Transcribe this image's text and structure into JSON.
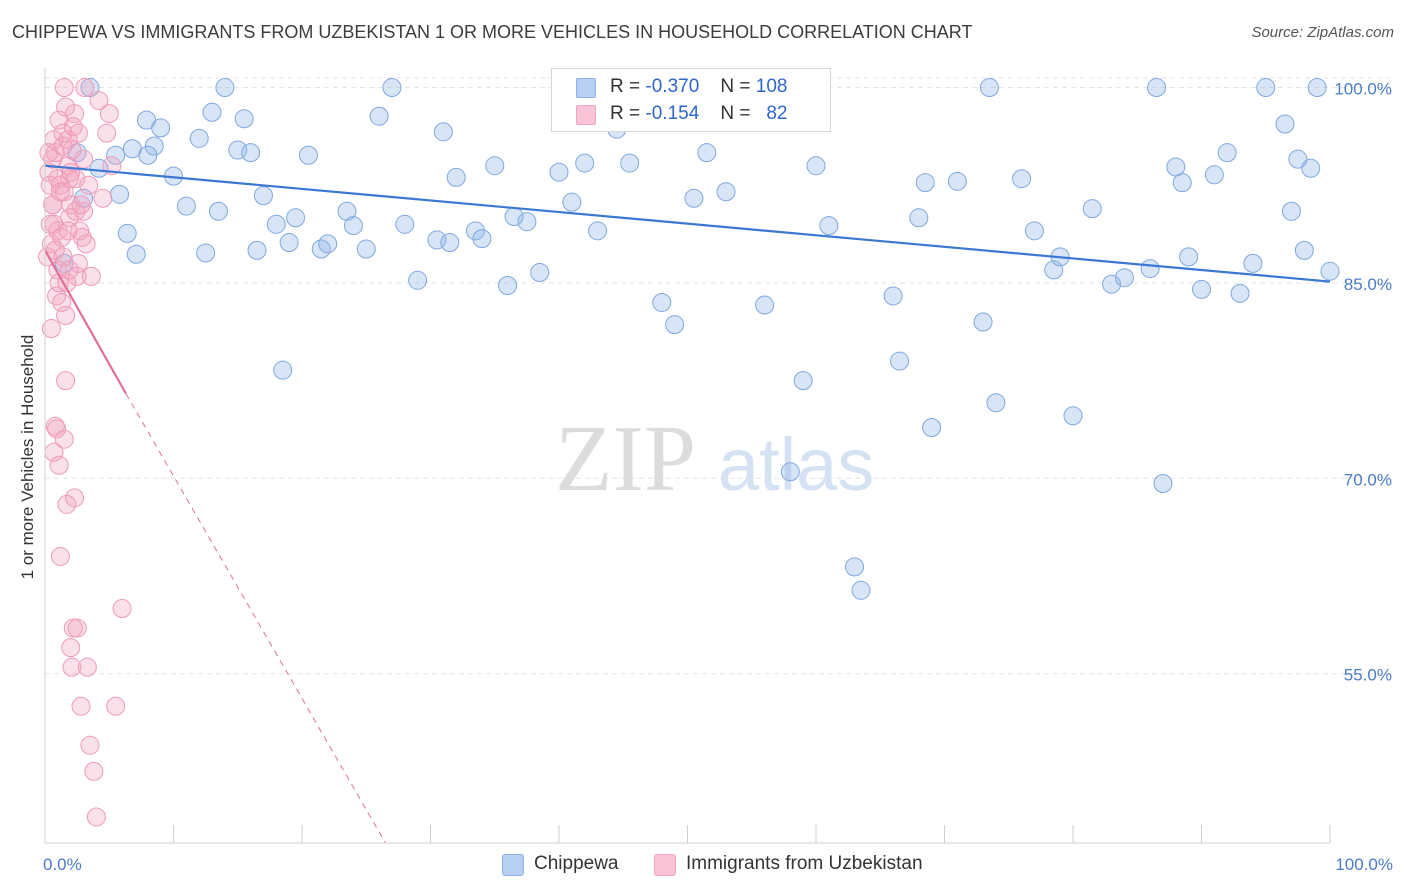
{
  "header": {
    "title": "CHIPPEWA VS IMMIGRANTS FROM UZBEKISTAN 1 OR MORE VEHICLES IN HOUSEHOLD CORRELATION CHART",
    "source": "Source: ZipAtlas.com"
  },
  "watermark": {
    "zip": "ZIP",
    "atlas": "atlas"
  },
  "legend": {
    "series1": {
      "r_label": "R =",
      "r_value": "-0.370",
      "n_label": "N =",
      "n_value": "108"
    },
    "series2": {
      "r_label": "R =",
      "r_value": "-0.154",
      "n_label": "N =",
      "n_value": "82"
    }
  },
  "chart_data": {
    "type": "scatter",
    "ylabel": "1 or more Vehicles in Household",
    "xlim": [
      0,
      100
    ],
    "ylim": [
      42,
      101.5
    ],
    "x_tick_labels": [
      "0.0%",
      "100.0%"
    ],
    "y_ticks": [
      55,
      70,
      85,
      100
    ],
    "y_tick_labels": [
      "55.0%",
      "70.0%",
      "85.0%",
      "100.0%"
    ],
    "grid": true,
    "legend_position": "top-center",
    "colors": {
      "series1": "#8fb5e8",
      "series1_line": "#3a78d4",
      "series2": "#f2a5c0",
      "series2_line": "#e07099",
      "axis_text": "#4a7cc8"
    },
    "series": [
      {
        "name": "Chippewa",
        "trend": {
          "x": [
            0,
            100
          ],
          "y": [
            94,
            85.1
          ]
        },
        "x": [
          3.0,
          4.2,
          5.5,
          5.8,
          6.4,
          6.8,
          7.1,
          7.9,
          8.5,
          9.0,
          10.0,
          11.0,
          12.0,
          12.5,
          13.0,
          13.5,
          15.0,
          15.5,
          16.0,
          16.5,
          17.0,
          18.0,
          18.5,
          19.0,
          20.5,
          21.5,
          22.0,
          23.5,
          24.0,
          25.0,
          26.0,
          27.0,
          28.0,
          29.0,
          30.5,
          31.0,
          32.0,
          33.5,
          34.0,
          35.0,
          36.0,
          37.5,
          38.5,
          40.0,
          41.0,
          42.0,
          43.0,
          45.5,
          48.0,
          49.0,
          50.5,
          51.5,
          53.0,
          55.0,
          56.0,
          57.5,
          58.0,
          59.0,
          60.0,
          61.0,
          63.5,
          66.0,
          66.5,
          68.0,
          69.0,
          71.0,
          73.0,
          74.0,
          76.0,
          77.0,
          78.5,
          80.0,
          81.5,
          83.0,
          86.0,
          87.0,
          88.0,
          88.5,
          89.0,
          90.0,
          91.0,
          92.0,
          94.0,
          95.0,
          97.0,
          97.5,
          98.0,
          98.5,
          99.0,
          100.0,
          1.5,
          2.5,
          3.5,
          8.0,
          14.0,
          19.5,
          31.5,
          36.5,
          44.5,
          46.5,
          63.0,
          68.5,
          73.5,
          79.0,
          84.0,
          86.5,
          93.0,
          96.5
        ],
        "y": [
          91.5,
          93.8,
          94.8,
          91.8,
          88.8,
          95.3,
          87.2,
          97.5,
          95.5,
          96.9,
          93.2,
          90.9,
          96.1,
          87.3,
          98.1,
          90.5,
          95.2,
          97.6,
          95.0,
          87.5,
          91.7,
          89.5,
          78.3,
          88.1,
          94.8,
          87.6,
          88.0,
          90.5,
          89.4,
          87.6,
          97.8,
          100.0,
          89.5,
          85.2,
          88.3,
          96.6,
          93.1,
          89.0,
          88.4,
          94.0,
          84.8,
          89.7,
          85.8,
          93.5,
          91.2,
          94.2,
          89.0,
          94.2,
          83.5,
          81.8,
          91.5,
          95.0,
          92.0,
          100.0,
          83.3,
          100.0,
          70.5,
          77.5,
          94.0,
          89.4,
          61.4,
          84.0,
          79.0,
          90.0,
          73.9,
          92.8,
          82.0,
          75.8,
          93.0,
          89.0,
          86.0,
          74.8,
          90.7,
          84.9,
          86.1,
          69.6,
          93.9,
          92.7,
          87.0,
          84.5,
          93.3,
          95.0,
          86.5,
          100.0,
          90.5,
          94.5,
          87.5,
          93.8,
          100.0,
          85.9,
          86.5,
          95.0,
          100.0,
          94.8,
          100.0,
          90.0,
          88.1,
          90.1,
          96.8,
          100.0,
          63.2,
          92.7,
          100.0,
          87.0,
          85.4,
          100.0,
          84.2,
          97.2
        ]
      },
      {
        "name": "Immigrants from Uzbekistan",
        "trend": {
          "x": [
            0,
            6.3,
            26.5
          ],
          "y": [
            87.5,
            76.5,
            42
          ]
        },
        "x": [
          0.2,
          0.3,
          0.4,
          0.5,
          0.5,
          0.6,
          0.6,
          0.7,
          0.7,
          0.8,
          0.8,
          0.9,
          0.9,
          1.0,
          1.0,
          1.1,
          1.1,
          1.2,
          1.2,
          1.3,
          1.3,
          1.4,
          1.4,
          1.5,
          1.5,
          1.6,
          1.6,
          1.7,
          1.7,
          1.8,
          1.8,
          1.9,
          1.9,
          2.0,
          2.0,
          2.1,
          2.1,
          2.2,
          2.3,
          2.3,
          2.4,
          2.5,
          2.6,
          2.7,
          2.8,
          2.9,
          3.0,
          3.1,
          3.3,
          3.5,
          3.6,
          3.8,
          4.0,
          4.2,
          4.5,
          4.8,
          5.0,
          5.2,
          5.5,
          6.0,
          0.3,
          0.6,
          0.8,
          1.0,
          1.2,
          1.4,
          1.6,
          1.8,
          2.0,
          2.2,
          2.4,
          2.6,
          2.8,
          3.0,
          3.2,
          3.4,
          0.4,
          0.7,
          1.1,
          1.5,
          1.9,
          2.5
        ],
        "y": [
          87.0,
          93.5,
          92.5,
          88.0,
          81.5,
          91.0,
          94.5,
          72.0,
          89.5,
          74.0,
          95.0,
          73.8,
          84.0,
          93.0,
          89.0,
          71.0,
          97.5,
          92.5,
          64.0,
          88.5,
          83.5,
          96.5,
          87.0,
          92.0,
          73.0,
          98.5,
          77.5,
          85.0,
          68.0,
          94.0,
          96.0,
          90.0,
          86.0,
          91.0,
          57.0,
          55.5,
          95.2,
          58.5,
          98.0,
          68.5,
          93.0,
          85.5,
          96.5,
          89.0,
          52.5,
          88.5,
          90.5,
          100.0,
          55.5,
          49.5,
          85.5,
          47.5,
          44.0,
          99.0,
          91.5,
          96.5,
          98.0,
          94.0,
          52.5,
          60.0,
          95.0,
          91.0,
          87.5,
          86.0,
          92.0,
          95.5,
          82.5,
          89.0,
          93.5,
          97.0,
          90.5,
          86.5,
          91.0,
          94.5,
          88.0,
          92.5,
          89.5,
          96.0,
          85.0,
          100.0,
          93.0,
          58.5
        ]
      }
    ]
  }
}
